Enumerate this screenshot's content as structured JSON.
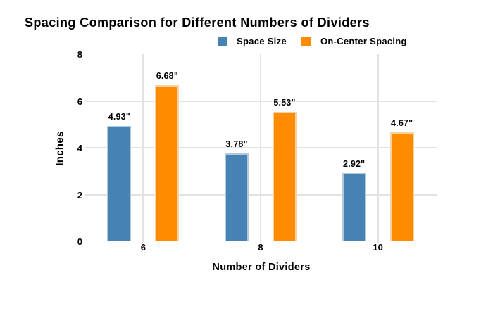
{
  "chart_data": {
    "type": "bar",
    "title": "Spacing Comparison for Different Numbers of Dividers",
    "xlabel": "Number of Dividers",
    "ylabel": "Inches",
    "categories": [
      "6",
      "8",
      "10"
    ],
    "series": [
      {
        "name": "Space Size",
        "color": "#4782b4",
        "border_color": "#b2c9dd",
        "values": [
          4.93,
          3.78,
          2.92
        ],
        "labels": [
          "4.93\"",
          "3.78\"",
          "2.92\""
        ]
      },
      {
        "name": "On-Center Spacing",
        "color": "#ff8c00",
        "border_color": "#f7d3a4",
        "values": [
          6.68,
          5.53,
          4.67
        ],
        "labels": [
          "6.68\"",
          "5.53\"",
          "4.67\""
        ]
      }
    ],
    "ylim": [
      0,
      8
    ],
    "yticks": [
      0,
      2,
      4,
      6,
      8
    ],
    "grid": {
      "horizontal_at": [
        2,
        4,
        6
      ],
      "vertical": "category-centers",
      "color": "#e3e3e3"
    },
    "legend_position": "top",
    "background": "#ffffff",
    "text_color": "#000000"
  }
}
